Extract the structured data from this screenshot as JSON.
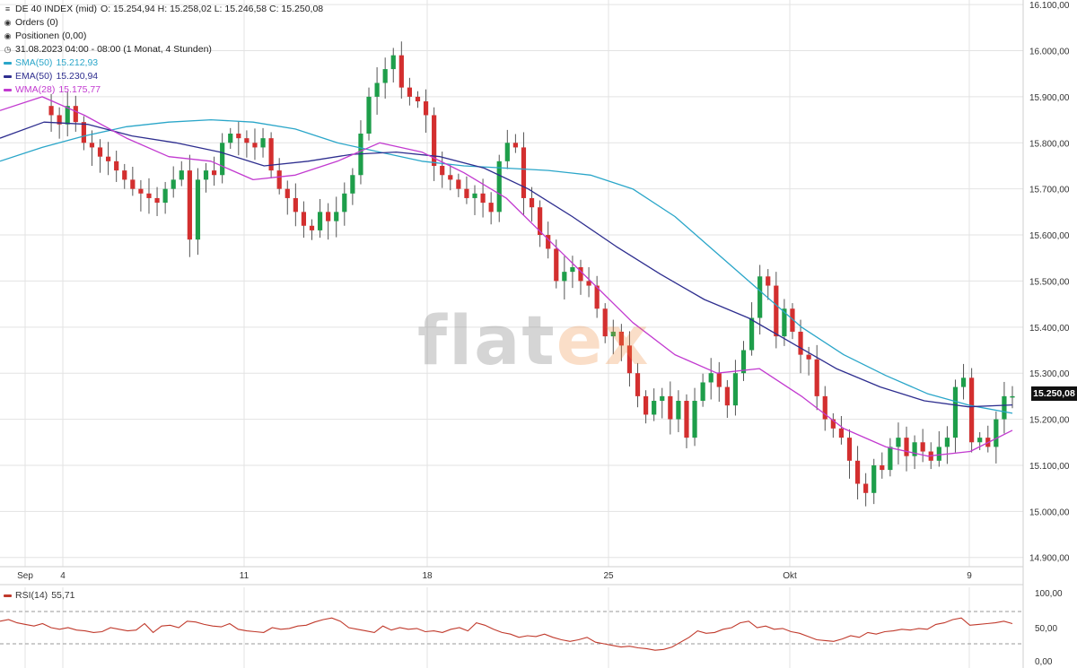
{
  "header": {
    "instrument": "DE 40 INDEX (mid)",
    "ohlc": "O: 15.254,94  H: 15.258,02  L: 15.246,58  C: 15.250,08",
    "orders": "Orders (0)",
    "positionen": "Positionen (0,00)",
    "timestamp": "31.08.2023 04:00 - 08:00   (1 Monat, 4 Stunden)"
  },
  "indicators": [
    {
      "label": "SMA(50)",
      "value": "15.212,93",
      "color": "#2aa6c9"
    },
    {
      "label": "EMA(50)",
      "value": "15.230,94",
      "color": "#2e2e8f"
    },
    {
      "label": "WMA(28)",
      "value": "15.175,77",
      "color": "#c23ad0"
    }
  ],
  "last_price_label": "15.250,08",
  "watermark": {
    "part1": "flat",
    "part2": "ex"
  },
  "rsi": {
    "label": "RSI(14)",
    "value": "55,71",
    "color": "#c0392b",
    "axis_labels": [
      "100,00",
      "50,00",
      "0,00"
    ]
  },
  "chart_data": {
    "type": "candlestick",
    "y_axis_labels": [
      "16.100,00",
      "16.000,00",
      "15.900,00",
      "15.800,00",
      "15.700,00",
      "15.600,00",
      "15.500,00",
      "15.400,00",
      "15.300,00",
      "15.200,00",
      "15.100,00",
      "15.000,00",
      "14.900,00"
    ],
    "ylim": [
      14880,
      16110
    ],
    "x_tick_labels": [
      "Sep",
      "4",
      "11",
      "18",
      "25",
      "Okt",
      "9"
    ],
    "close_path": [
      15880,
      15860,
      15840,
      15880,
      15845,
      15800,
      15790,
      15770,
      15760,
      15740,
      15720,
      15700,
      15690,
      15680,
      15670,
      15700,
      15720,
      15740,
      15590,
      15720,
      15740,
      15730,
      15800,
      15820,
      15810,
      15800,
      15790,
      15810,
      15740,
      15700,
      15680,
      15650,
      15620,
      15610,
      15650,
      15630,
      15650,
      15690,
      15730,
      15820,
      15900,
      15930,
      15960,
      15990,
      15920,
      15900,
      15890,
      15860,
      15750,
      15730,
      15720,
      15700,
      15680,
      15690,
      15670,
      15650,
      15760,
      15800,
      15790,
      15680,
      15660,
      15600,
      15570,
      15500,
      15520,
      15530,
      15500,
      15490,
      15440,
      15380,
      15390,
      15360,
      15300,
      15250,
      15210,
      15240,
      15250,
      15200,
      15240,
      15160,
      15240,
      15280,
      15300,
      15270,
      15230,
      15300,
      15350,
      15420,
      15510,
      15490,
      15380,
      15440,
      15390,
      15340,
      15330,
      15250,
      15200,
      15180,
      15160,
      15110,
      15060,
      15040,
      15100,
      15090,
      15140,
      15160,
      15120,
      15150,
      15130,
      15110,
      15140,
      15160,
      15270,
      15290,
      15150,
      15160,
      15140,
      15200,
      15250,
      15250
    ],
    "sma50": [
      15760,
      15790,
      15815,
      15835,
      15845,
      15850,
      15845,
      15830,
      15800,
      15780,
      15760,
      15750,
      15745,
      15740,
      15730,
      15700,
      15640,
      15560,
      15480,
      15400,
      15340,
      15295,
      15255,
      15230,
      15213
    ],
    "ema50": [
      15810,
      15845,
      15840,
      15815,
      15800,
      15780,
      15750,
      15760,
      15775,
      15780,
      15770,
      15745,
      15700,
      15640,
      15575,
      15515,
      15460,
      15420,
      15365,
      15310,
      15270,
      15240,
      15227,
      15231
    ],
    "wma28": [
      15870,
      15900,
      15860,
      15810,
      15770,
      15760,
      15720,
      15730,
      15760,
      15800,
      15780,
      15735,
      15680,
      15590,
      15500,
      15410,
      15340,
      15300,
      15310,
      15250,
      15180,
      15140,
      15120,
      15130,
      15176
    ],
    "rsi_ylim": [
      0,
      100
    ],
    "rsi_levels": [
      70,
      30
    ],
    "rsi_values": [
      58,
      60,
      56,
      54,
      52,
      55,
      50,
      48,
      50,
      47,
      46,
      44,
      45,
      50,
      48,
      46,
      47,
      55,
      44,
      52,
      53,
      50,
      58,
      57,
      54,
      52,
      51,
      55,
      48,
      46,
      45,
      44,
      50,
      48,
      49,
      52,
      53,
      57,
      60,
      62,
      58,
      50,
      48,
      46,
      44,
      52,
      47,
      50,
      48,
      49,
      45,
      46,
      44,
      48,
      50,
      46,
      56,
      53,
      48,
      44,
      42,
      38,
      40,
      39,
      42,
      38,
      35,
      33,
      35,
      38,
      32,
      30,
      28,
      26,
      27,
      25,
      24,
      22,
      23,
      26,
      32,
      38,
      46,
      43,
      44,
      48,
      50,
      56,
      58,
      50,
      52,
      48,
      49,
      45,
      43,
      39,
      35,
      34,
      33,
      36,
      40,
      38,
      44,
      42,
      45,
      46,
      48,
      47,
      49,
      48,
      54,
      56,
      60,
      62,
      53,
      54,
      55,
      56,
      58,
      55
    ]
  }
}
